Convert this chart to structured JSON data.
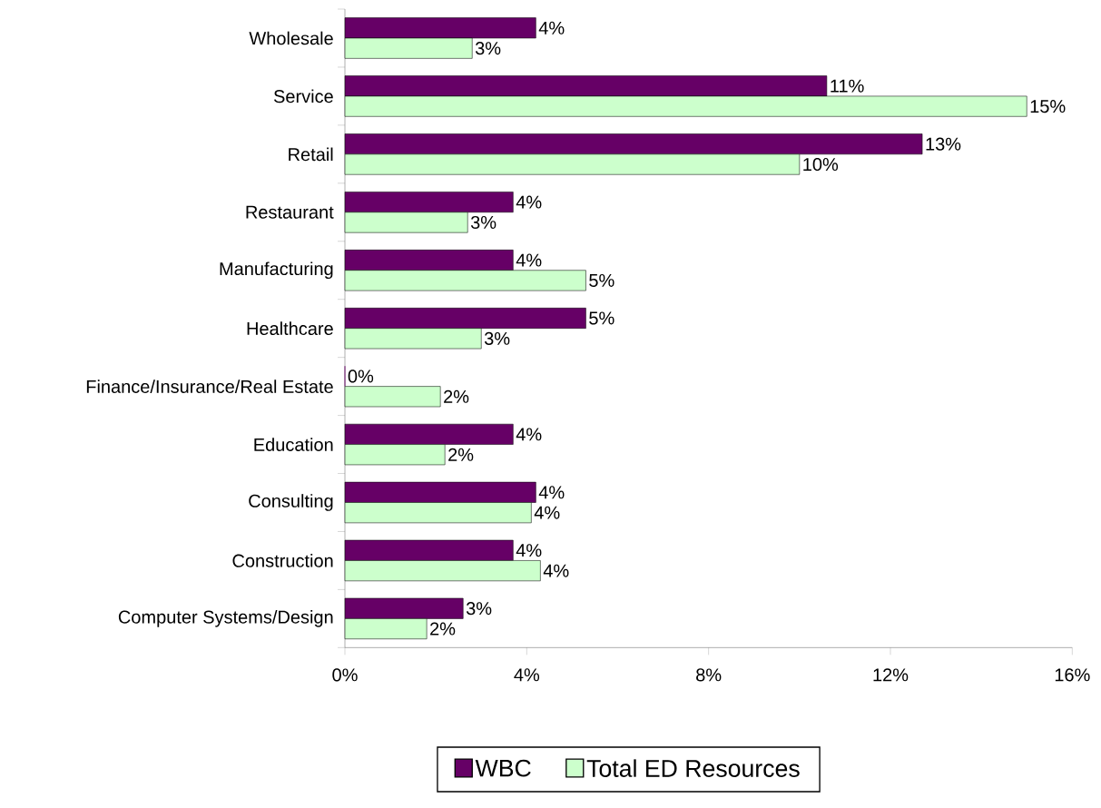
{
  "chart_data": {
    "type": "bar",
    "orientation": "horizontal",
    "categories": [
      "Wholesale",
      "Service",
      "Retail",
      "Restaurant",
      "Manufacturing",
      "Healthcare",
      "Finance/Insurance/Real Estate",
      "Education",
      "Consulting",
      "Construction",
      "Computer Systems/Design"
    ],
    "series": [
      {
        "name": "WBC",
        "color": "#660066",
        "values": [
          4.2,
          10.6,
          12.7,
          3.7,
          3.7,
          5.3,
          0,
          3.7,
          4.2,
          3.7,
          2.6
        ],
        "value_labels": [
          "4%",
          "11%",
          "13%",
          "4%",
          "4%",
          "5%",
          "0%",
          "4%",
          "4%",
          "4%",
          "3%"
        ]
      },
      {
        "name": "Total ED Resources",
        "color": "#ccffcc",
        "values": [
          2.8,
          15.0,
          10.0,
          2.7,
          5.3,
          3.0,
          2.1,
          2.2,
          4.1,
          4.3,
          1.8
        ],
        "value_labels": [
          "3%",
          "15%",
          "10%",
          "3%",
          "5%",
          "3%",
          "2%",
          "2%",
          "4%",
          "4%",
          "2%"
        ]
      }
    ],
    "xlim": [
      0,
      16
    ],
    "xticks": [
      {
        "value": 0,
        "label": "0%"
      },
      {
        "value": 4,
        "label": "4%"
      },
      {
        "value": 8,
        "label": "8%"
      },
      {
        "value": 12,
        "label": "12%"
      },
      {
        "value": 16,
        "label": "16%"
      }
    ],
    "legend": "bottom"
  }
}
